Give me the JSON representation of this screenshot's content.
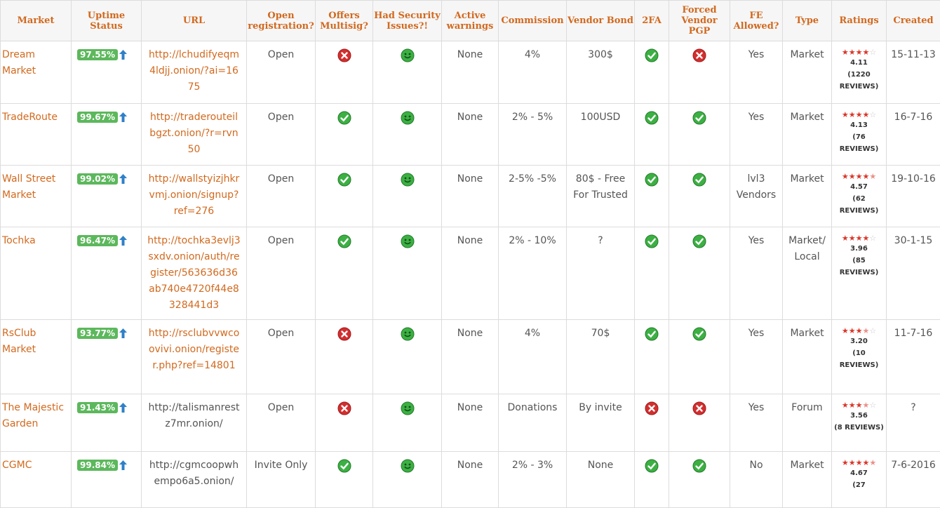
{
  "headers": [
    "Market",
    "Uptime Status",
    "URL",
    "Open registration?",
    "Offers Multisig?",
    "Had Security Issues?!",
    "Active warnings",
    "Commission",
    "Vendor Bond",
    "2FA",
    "Forced Vendor PGP",
    "FE Allowed?",
    "Type",
    "Ratings",
    "Created"
  ],
  "rows": [
    {
      "market": "Dream Market",
      "uptime": "97.55%",
      "url": "http://lchudifyeqm4ldjj.onion/?ai=1675",
      "url_link": true,
      "open": "Open",
      "multisig": "no",
      "security": "smile",
      "warnings": "None",
      "commission": "4%",
      "bond": "300$",
      "twofa": "yes",
      "pgp": "no",
      "fe": "Yes",
      "type": "Market",
      "rating": 4.11,
      "stars": "4",
      "reviews_a": "(1220",
      "reviews_b": "REVIEWS)",
      "created": "15-11-13",
      "h": 89
    },
    {
      "market": "TradeRoute",
      "uptime": "99.67%",
      "url": "http://traderouteilbgzt.onion/?r=rvn50",
      "url_link": true,
      "open": "Open",
      "multisig": "yes",
      "security": "smile",
      "warnings": "None",
      "commission": "2% - 5%",
      "bond": "100USD",
      "twofa": "yes",
      "pgp": "yes",
      "fe": "Yes",
      "type": "Market",
      "rating": 4.13,
      "stars": "4",
      "reviews_a": "(76",
      "reviews_b": "REVIEWS)",
      "created": "16-7-16",
      "h": 88
    },
    {
      "market": "Wall Street Market",
      "uptime": "99.02%",
      "url": "http://wallstyizjhkrvmj.onion/signup?ref=276",
      "url_link": true,
      "open": "Open",
      "multisig": "yes",
      "security": "smile",
      "warnings": "None",
      "commission": "2-5% -5%",
      "bond": "80$ - Free For Trusted",
      "twofa": "yes",
      "pgp": "yes",
      "fe": "lvl3 Vendors",
      "type": "Market",
      "rating": 4.57,
      "stars": "4.5",
      "reviews_a": "(62",
      "reviews_b": "REVIEWS)",
      "created": "19-10-16",
      "h": 88
    },
    {
      "market": "Tochka",
      "uptime": "96.47%",
      "url": "http://tochka3evlj3sxdv.onion/auth/register/563636d36ab740e4720f44e8328441d3",
      "url_link": true,
      "open": "Open",
      "multisig": "yes",
      "security": "smile",
      "warnings": "None",
      "commission": "2% - 10%",
      "bond": "?",
      "twofa": "yes",
      "pgp": "yes",
      "fe": "Yes",
      "type": "Market/ Local",
      "rating": 3.96,
      "stars": "4",
      "reviews_a": "(85",
      "reviews_b": "REVIEWS)",
      "created": "30-1-15",
      "h": 132
    },
    {
      "market": "RsClub Market",
      "uptime": "93.77%",
      "url": "http://rsclubvvwcoovivi.onion/register.php?ref=14801",
      "url_link": true,
      "open": "Open",
      "multisig": "no",
      "security": "smile",
      "warnings": "None",
      "commission": "4%",
      "bond": "70$",
      "twofa": "yes",
      "pgp": "yes",
      "fe": "Yes",
      "type": "Market",
      "rating": 3.2,
      "stars": "3.5",
      "reviews_a": "(10",
      "reviews_b": "REVIEWS)",
      "created": "11-7-16",
      "h": 106
    },
    {
      "market": "The Majestic Garden",
      "uptime": "91.43%",
      "url": "http://talismanrestz7mr.onion/",
      "url_link": false,
      "open": "Open",
      "multisig": "no",
      "security": "smile",
      "warnings": "None",
      "commission": "Donations",
      "bond": "By invite",
      "twofa": "no",
      "pgp": "no",
      "fe": "Yes",
      "type": "Forum",
      "rating": 3.56,
      "stars": "3.5",
      "reviews_a": "(8 REVIEWS)",
      "reviews_b": "",
      "created": "?",
      "h": 82
    },
    {
      "market": "CGMC",
      "uptime": "99.84%",
      "url": "http://cgmcoopwhempo6a5.onion/",
      "url_link": false,
      "open": "Invite Only",
      "multisig": "yes",
      "security": "smile",
      "warnings": "None",
      "commission": "2% - 3%",
      "bond": "None",
      "twofa": "yes",
      "pgp": "yes",
      "fe": "No",
      "type": "Market",
      "rating": 4.67,
      "stars": "4.5",
      "reviews_a": "(27",
      "reviews_b": "",
      "created": "7-6-2016",
      "h": 80
    }
  ],
  "colors": {
    "accent": "#d2691e",
    "badge": "#5cb85c",
    "yes": "#3cb043",
    "no": "#d32f2f",
    "star": "#d9372a"
  }
}
